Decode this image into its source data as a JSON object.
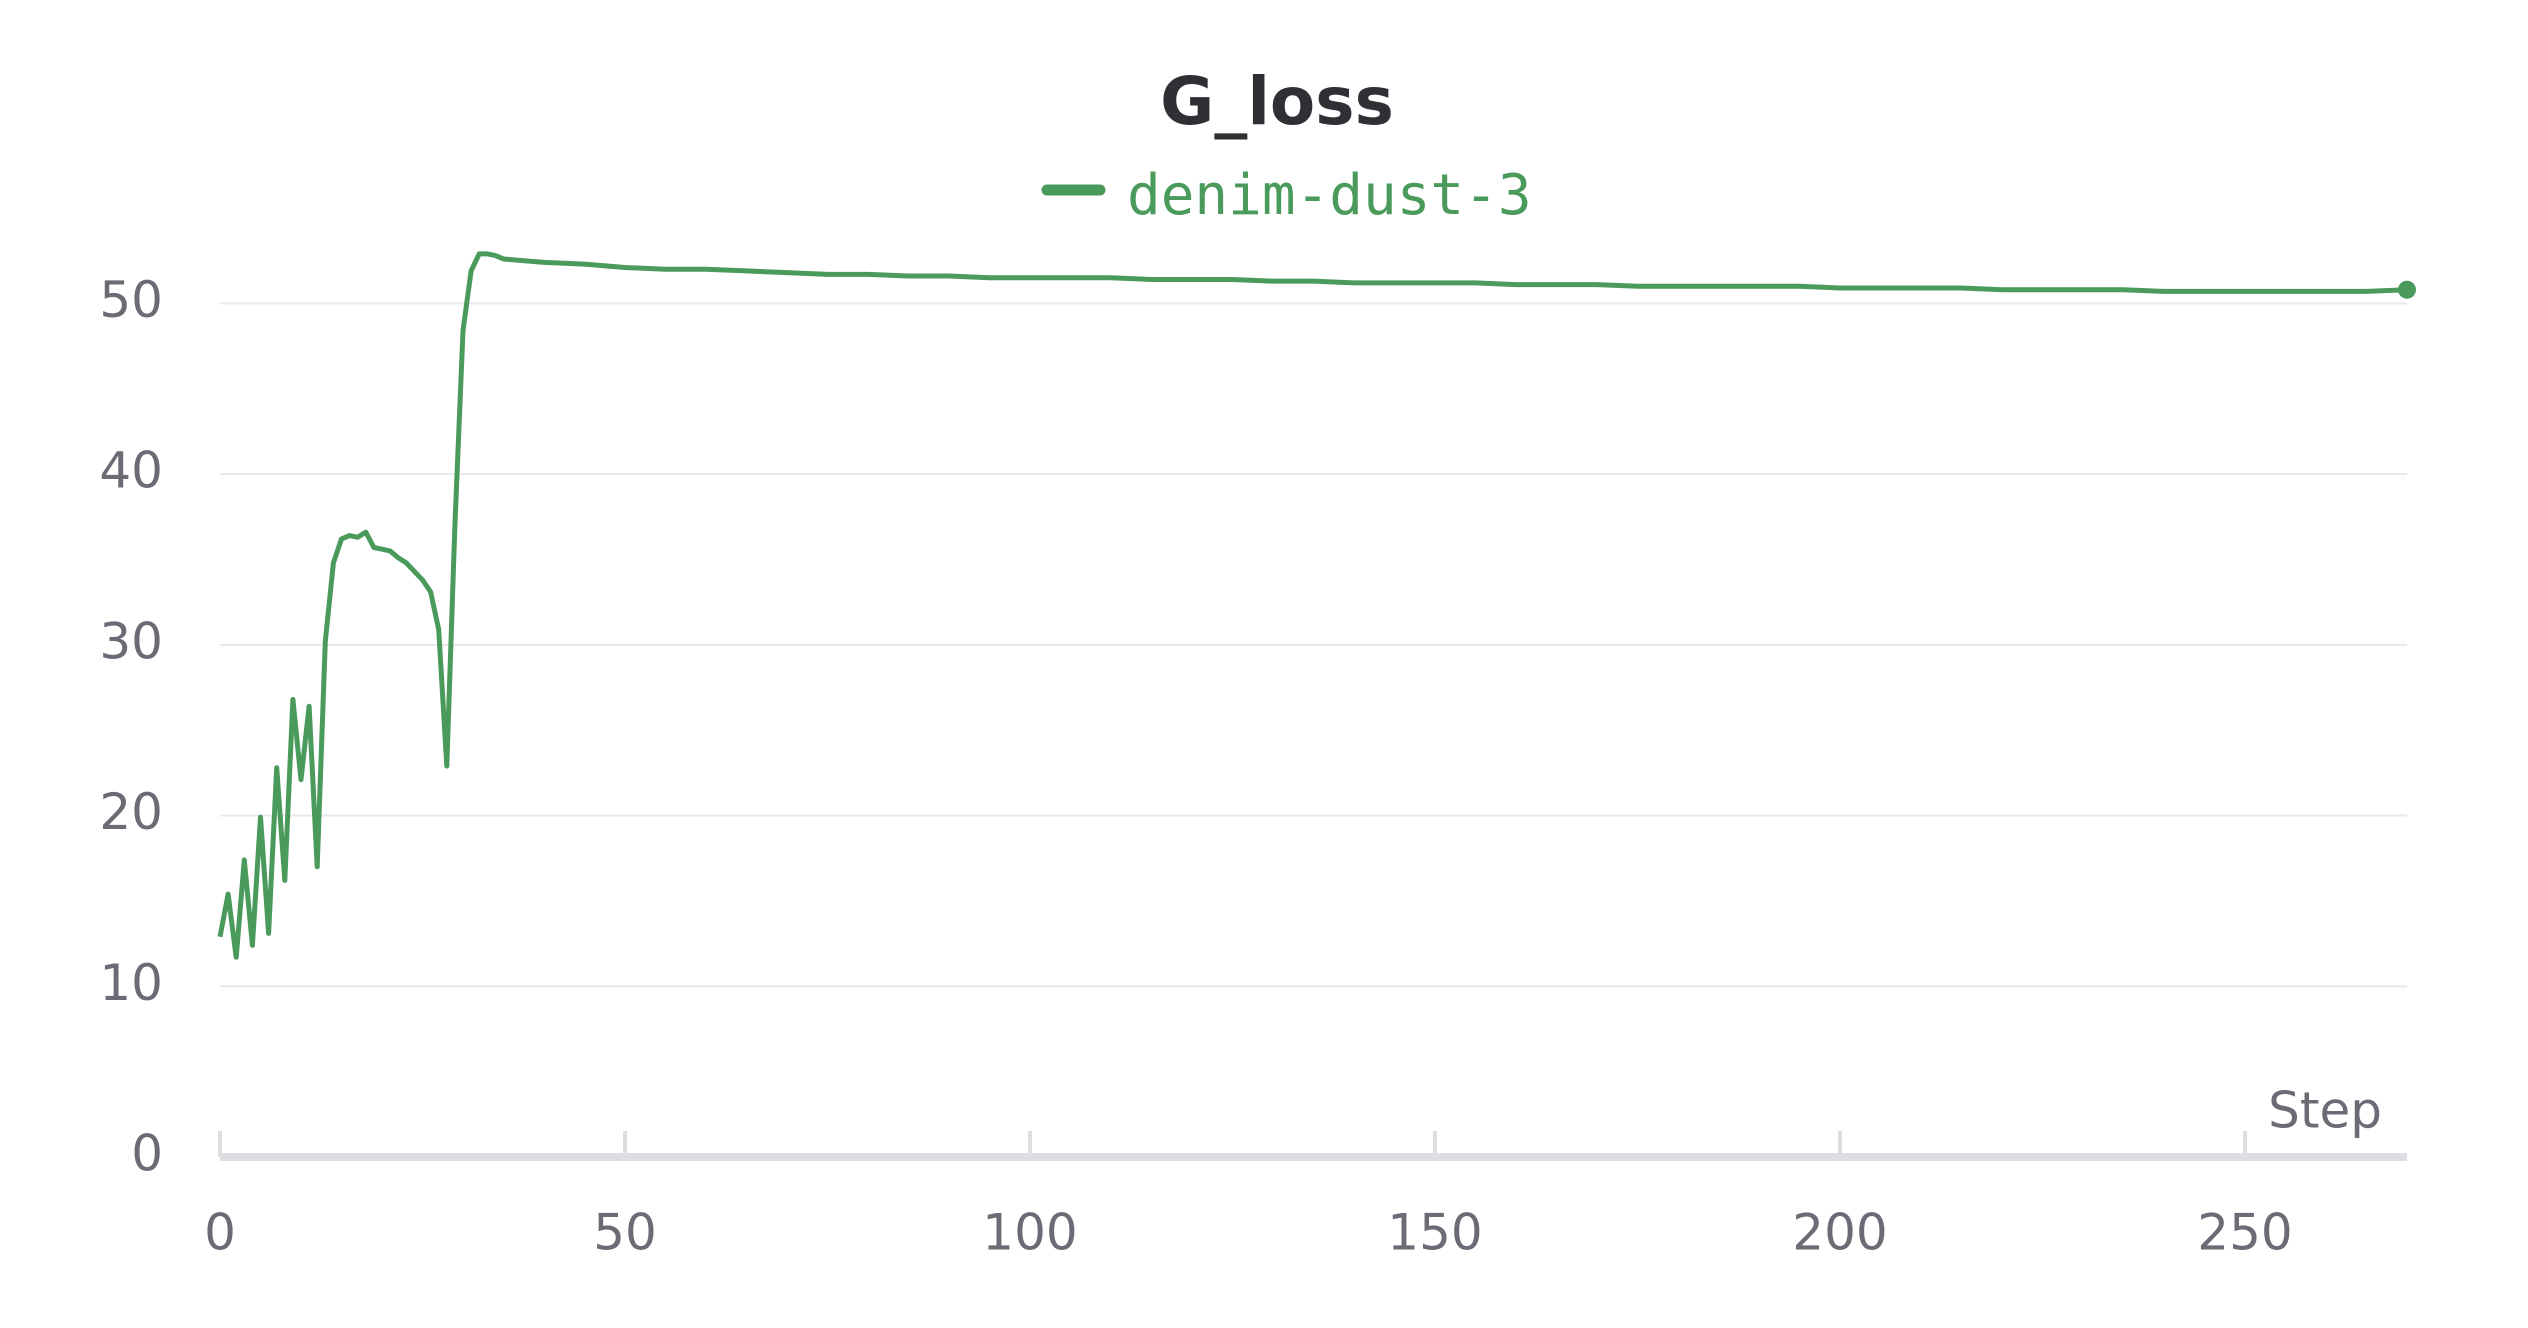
{
  "chart_data": {
    "type": "line",
    "title": "G_loss",
    "x_label": "Step",
    "x": [
      0,
      1,
      2,
      3,
      4,
      5,
      6,
      7,
      8,
      9,
      10,
      11,
      12,
      13,
      14,
      15,
      16,
      17,
      18,
      19,
      20,
      21,
      22,
      23,
      24,
      25,
      26,
      27,
      28,
      29,
      30,
      31,
      32,
      33,
      34,
      35,
      40,
      45,
      50,
      55,
      60,
      65,
      70,
      75,
      80,
      85,
      90,
      95,
      100,
      105,
      110,
      115,
      120,
      125,
      130,
      135,
      140,
      145,
      150,
      155,
      160,
      165,
      170,
      175,
      180,
      185,
      190,
      195,
      200,
      205,
      210,
      215,
      220,
      225,
      230,
      235,
      240,
      245,
      250,
      255,
      260,
      265,
      270
    ],
    "series": [
      {
        "name": "denim-dust-3",
        "color": "#4a9a5c",
        "values": [
          12.9,
          15.4,
          11.7,
          17.4,
          12.4,
          19.9,
          13.1,
          22.8,
          16.2,
          26.8,
          22.1,
          26.4,
          17.0,
          30.2,
          34.8,
          36.2,
          36.4,
          36.3,
          36.6,
          35.7,
          35.6,
          35.5,
          35.1,
          34.8,
          34.3,
          33.8,
          33.1,
          30.9,
          22.9,
          37.0,
          48.4,
          51.9,
          52.9,
          52.9,
          52.8,
          52.6,
          52.4,
          52.3,
          52.1,
          52.0,
          52.0,
          51.9,
          51.8,
          51.7,
          51.7,
          51.6,
          51.6,
          51.5,
          51.5,
          51.5,
          51.5,
          51.4,
          51.4,
          51.4,
          51.3,
          51.3,
          51.2,
          51.2,
          51.2,
          51.2,
          51.1,
          51.1,
          51.1,
          51.0,
          51.0,
          51.0,
          51.0,
          51.0,
          50.9,
          50.9,
          50.9,
          50.9,
          50.8,
          50.8,
          50.8,
          50.8,
          50.7,
          50.7,
          50.7,
          50.7,
          50.7,
          50.7,
          50.8
        ]
      }
    ],
    "xlim": [
      0,
      270
    ],
    "ylim": [
      0,
      55
    ],
    "xticks": [
      0,
      50,
      100,
      150,
      200,
      250
    ],
    "yticks": [
      0,
      10,
      20,
      30,
      40,
      50
    ],
    "grid": true
  }
}
